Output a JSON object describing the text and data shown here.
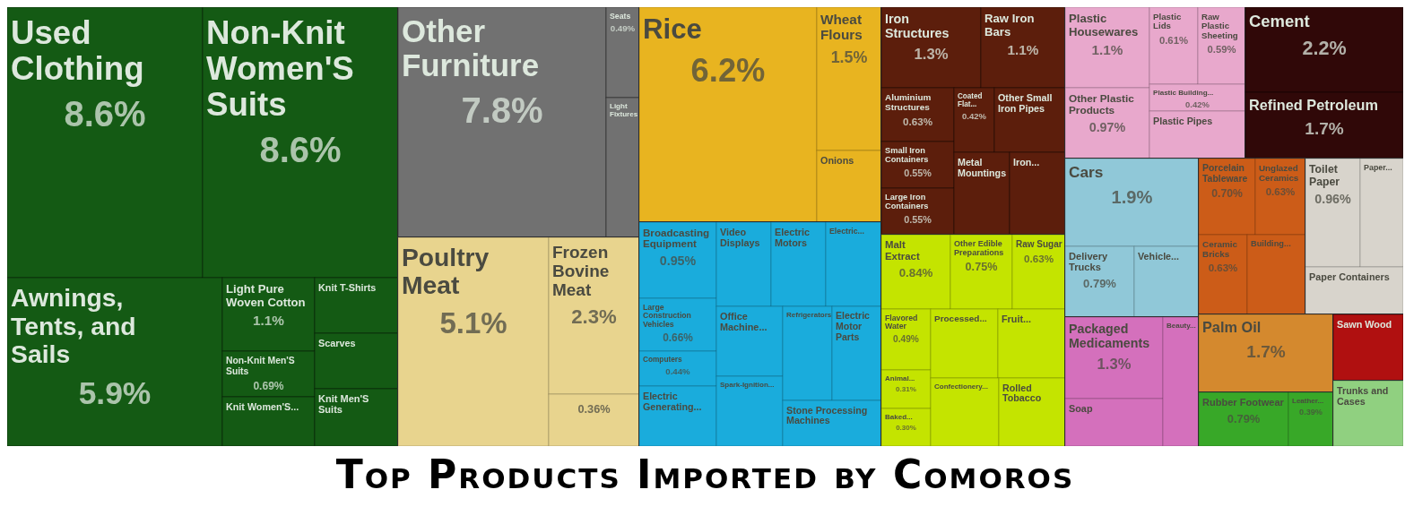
{
  "chart_data": {
    "type": "other",
    "title": "Top Products Imported by Comoros",
    "categories": [
      "Used Clothing",
      "Non-Knit Women'S Suits",
      "Awnings, Tents, and Sails",
      "Light Pure Woven Cotton",
      "Non-Knit Men'S Suits",
      "Knit Women'S...",
      "Knit T-Shirts",
      "Scarves",
      "Knit Men'S Suits",
      "Other Furniture",
      "Seats",
      "Light Fixtures",
      "Poultry Meat",
      "Frozen Bovine Meat",
      null,
      "Rice",
      "Wheat Flours",
      "Onions",
      "Broadcasting Equipment",
      "Large Construction Vehicles",
      "Computers",
      "Electric Generating...",
      "Video Displays",
      "Electric Motors",
      "Electric...",
      "Office Machine...",
      "Spark-Ignition...",
      "Refrigerators",
      "Electric Motor Parts",
      "Stone Processing Machines",
      "Iron Structures",
      "Raw Iron Bars",
      "Aluminium Structures",
      "Small Iron Containers",
      "Large Iron Containers",
      "Coated Flat...",
      "Other Small Iron Pipes",
      "Metal Mountings",
      "Iron...",
      "Malt Extract",
      "Other Edible Preparations",
      "Raw Sugar",
      "Flavored Water",
      "Animal...",
      "Baked...",
      "Processed...",
      "Fruit...",
      "Confectionery...",
      "Rolled Tobacco",
      "Plastic Housewares",
      "Other Plastic Products",
      "Plastic Lids",
      "Raw Plastic Sheeting",
      "Plastic Building...",
      "Plastic Pipes",
      "Cement",
      "Refined Petroleum",
      "Cars",
      "Delivery Trucks",
      "Vehicle...",
      "Packaged Medicaments",
      "Soap",
      "Beauty...",
      "Porcelain Tableware",
      "Unglazed Ceramics",
      "Ceramic Bricks",
      "Building...",
      "Toilet Paper",
      "Paper...",
      "Paper Containers",
      "Palm Oil",
      "Rubber Footwear",
      "Leather...",
      "Sawn Wood",
      "Trunks and Cases"
    ],
    "values": [
      8.6,
      8.6,
      5.9,
      1.1,
      0.69,
      null,
      null,
      null,
      null,
      7.8,
      0.49,
      null,
      5.1,
      2.3,
      null,
      6.2,
      1.5,
      null,
      0.95,
      0.66,
      0.44,
      null,
      null,
      null,
      null,
      null,
      null,
      null,
      null,
      null,
      1.3,
      1.1,
      0.63,
      0.55,
      0.55,
      0.42,
      null,
      null,
      null,
      0.84,
      0.75,
      0.63,
      0.49,
      0.31,
      0.3,
      null,
      null,
      null,
      null,
      1.1,
      0.97,
      0.61,
      0.59,
      0.42,
      null,
      2.2,
      1.7,
      1.9,
      0.79,
      null,
      1.3,
      null,
      null,
      0.7,
      0.63,
      0.63,
      null,
      0.96,
      null,
      null,
      1.7,
      0.79,
      0.39,
      null,
      null
    ],
    "value_labels": [
      "8.6%",
      "8.6%",
      "5.9%",
      "1.1%",
      "0.69%",
      null,
      null,
      null,
      null,
      "7.8%",
      "0.49%",
      null,
      "5.1%",
      "2.3%",
      "0.36%",
      "6.2%",
      "1.5%",
      null,
      "0.95%",
      "0.66%",
      "0.44%",
      null,
      null,
      null,
      null,
      null,
      null,
      null,
      null,
      null,
      "1.3%",
      "1.1%",
      "0.63%",
      "0.55%",
      "0.55%",
      "0.42%",
      null,
      null,
      null,
      "0.84%",
      "0.75%",
      "0.63%",
      "0.49%",
      "0.31%",
      "0.30%",
      null,
      null,
      null,
      null,
      "1.1%",
      "0.97%",
      "0.61%",
      "0.59%",
      "0.42%",
      null,
      "2.2%",
      "1.7%",
      "1.9%",
      "0.79%",
      null,
      "1.3%",
      null,
      null,
      "0.70%",
      "0.63%",
      "0.63%",
      null,
      "0.96%",
      null,
      null,
      "1.7%",
      "0.79%",
      "0.39%",
      null,
      null
    ],
    "colors": [
      "#145a14",
      "#145a14",
      "#145a14",
      "#145a14",
      "#145a14",
      "#145a14",
      "#145a14",
      "#145a14",
      "#145a14",
      "#717171",
      "#717171",
      "#717171",
      "#e8d48e",
      "#e8d48e",
      "#e8d48e",
      "#e8b420",
      "#e8b420",
      "#e8b420",
      "#1aacdc",
      "#1aacdc",
      "#1aacdc",
      "#1aacdc",
      "#1aacdc",
      "#1aacdc",
      "#1aacdc",
      "#1aacdc",
      "#1aacdc",
      "#1aacdc",
      "#1aacdc",
      "#1aacdc",
      "#5c1e0c",
      "#5c1e0c",
      "#5c1e0c",
      "#5c1e0c",
      "#5c1e0c",
      "#5c1e0c",
      "#5c1e0c",
      "#5c1e0c",
      "#5c1e0c",
      "#c4e400",
      "#c4e400",
      "#c4e400",
      "#c4e400",
      "#c4e400",
      "#c4e400",
      "#c4e400",
      "#c4e400",
      "#c4e400",
      "#c4e400",
      "#e8a8cc",
      "#e8a8cc",
      "#e8a8cc",
      "#e8a8cc",
      "#e8a8cc",
      "#e8a8cc",
      "#300808",
      "#300808",
      "#90c8d8",
      "#90c8d8",
      "#90c8d8",
      "#d470bc",
      "#d470bc",
      "#d470bc",
      "#cc5c18",
      "#cc5c18",
      "#cc5c18",
      "#cc5c18",
      "#d8d4cc",
      "#d8d4cc",
      "#d8d4cc",
      "#d4892e",
      "#38a828",
      "#38a828",
      "#b01010",
      "#90d080"
    ]
  }
}
